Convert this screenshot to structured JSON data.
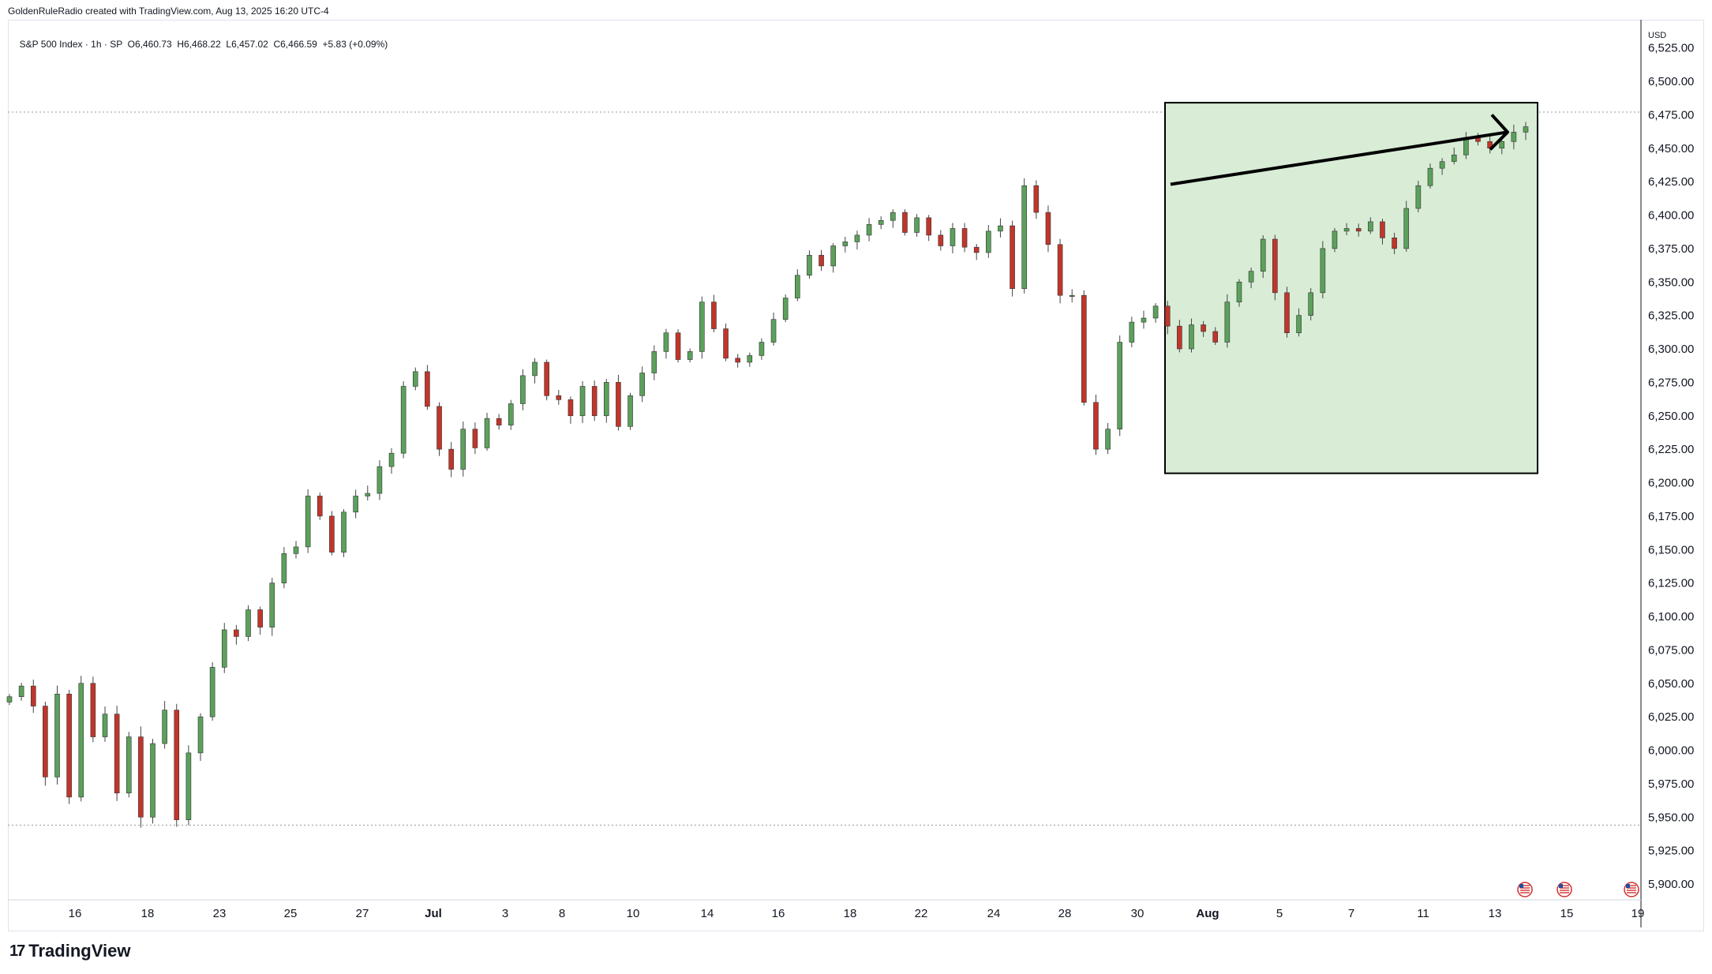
{
  "header": {
    "credit": "GoldenRuleRadio created with TradingView.com, Aug 13, 2025 16:20 UTC-4"
  },
  "legend": {
    "symbol": "S&P 500 Index · 1h · SP",
    "ohlc": "O6,460.73  H6,468.22  L6,457.02  C6,466.59  +5.83 (+0.09%)"
  },
  "price_axis": {
    "currency": "USD",
    "ticks": [
      "6,525.00",
      "6,500.00",
      "6,475.00",
      "6,450.00",
      "6,425.00",
      "6,400.00",
      "6,375.00",
      "6,350.00",
      "6,325.00",
      "6,300.00",
      "6,275.00",
      "6,250.00",
      "6,225.00",
      "6,200.00",
      "6,175.00",
      "6,150.00",
      "6,125.00",
      "6,100.00",
      "6,075.00",
      "6,050.00",
      "6,025.00",
      "6,000.00",
      "5,975.00",
      "5,950.00",
      "5,925.00",
      "5,900.00"
    ]
  },
  "logo": {
    "text": "TradingView",
    "mark": "17"
  },
  "colors": {
    "up": "#26a69a",
    "up_fill": "#5ba15b",
    "down": "#c1352a",
    "highlight_fill": "#d8ecd6",
    "highlight_border": "#000000",
    "grid_dotted": "#9598a1"
  },
  "chart_data": {
    "type": "candlestick",
    "title": "S&P 500 Index · 1h · SP",
    "ylim": [
      5890,
      6535
    ],
    "x_tick_labels": [
      "16",
      "18",
      "23",
      "25",
      "27",
      "Jul",
      "3",
      "8",
      "10",
      "14",
      "16",
      "18",
      "22",
      "24",
      "28",
      "30",
      "Aug",
      "5",
      "7",
      "11",
      "13",
      "15",
      "19"
    ],
    "reference_lines": [
      6477,
      5944
    ],
    "annotation": {
      "box": {
        "x_start_label": "Jul 31",
        "x_end_label": "Aug 13",
        "y_low": 6207,
        "y_high": 6484
      },
      "arrow": {
        "from_price": 6423,
        "to_price": 6462
      }
    },
    "path": [
      [
        6040,
        0
      ],
      [
        6048,
        2
      ],
      [
        6033,
        3
      ],
      [
        5980,
        3
      ],
      [
        6042,
        4
      ],
      [
        5965,
        2
      ],
      [
        6050,
        3
      ],
      [
        6010,
        3
      ],
      [
        6027,
        3
      ],
      [
        5968,
        4
      ],
      [
        6010,
        3
      ],
      [
        5950,
        4
      ],
      [
        6005,
        3
      ],
      [
        6030,
        3
      ],
      [
        5948,
        3
      ],
      [
        5998,
        3
      ],
      [
        6025,
        2
      ],
      [
        6062,
        2
      ],
      [
        6090,
        3
      ],
      [
        6085,
        3
      ],
      [
        6105,
        2
      ],
      [
        6092,
        2
      ],
      [
        6125,
        3
      ],
      [
        6147,
        3
      ],
      [
        6152,
        2
      ],
      [
        6190,
        2
      ],
      [
        6175,
        2
      ],
      [
        6148,
        2
      ],
      [
        6178,
        2
      ],
      [
        6190,
        2
      ],
      [
        6192,
        2
      ],
      [
        6212,
        3
      ],
      [
        6222,
        2
      ],
      [
        6272,
        2
      ],
      [
        6283,
        2
      ],
      [
        6257,
        2
      ],
      [
        6225,
        2
      ],
      [
        6210,
        2
      ],
      [
        6240,
        2
      ],
      [
        6226,
        2
      ],
      [
        6248,
        2
      ],
      [
        6243,
        2
      ],
      [
        6259,
        2
      ],
      [
        6280,
        2
      ],
      [
        6290,
        2
      ],
      [
        6265,
        2
      ],
      [
        6262,
        2
      ],
      [
        6250,
        2
      ],
      [
        6272,
        2
      ],
      [
        6250,
        2
      ],
      [
        6275,
        2
      ],
      [
        6242,
        2
      ],
      [
        6265,
        2
      ],
      [
        6282,
        2
      ],
      [
        6298,
        2
      ],
      [
        6312,
        2
      ],
      [
        6292,
        2
      ],
      [
        6298,
        2
      ],
      [
        6335,
        2
      ],
      [
        6315,
        2
      ],
      [
        6293,
        2
      ],
      [
        6290,
        2
      ],
      [
        6295,
        2
      ],
      [
        6305,
        2
      ],
      [
        6322,
        2
      ],
      [
        6338,
        2
      ],
      [
        6355,
        2
      ],
      [
        6370,
        2
      ],
      [
        6362,
        2
      ],
      [
        6377,
        2
      ],
      [
        6380,
        2
      ],
      [
        6385,
        2
      ],
      [
        6393,
        2
      ],
      [
        6396,
        2
      ],
      [
        6402,
        2
      ],
      [
        6387,
        2
      ],
      [
        6398,
        2
      ],
      [
        6385,
        2
      ],
      [
        6377,
        2
      ],
      [
        6390,
        2
      ],
      [
        6376,
        2
      ],
      [
        6372,
        2
      ],
      [
        6388,
        2
      ],
      [
        6392,
        2
      ],
      [
        6345,
        2
      ],
      [
        6422,
        2
      ],
      [
        6402,
        2
      ],
      [
        6378,
        2
      ],
      [
        6340,
        2
      ],
      [
        6340,
        2
      ],
      [
        6260,
        2
      ],
      [
        6225,
        2
      ],
      [
        6240,
        2
      ],
      [
        6305,
        2
      ],
      [
        6320,
        2
      ],
      [
        6323,
        2
      ],
      [
        6332,
        2
      ],
      [
        6317,
        2
      ],
      [
        6300,
        2
      ],
      [
        6318,
        2
      ],
      [
        6313,
        2
      ],
      [
        6305,
        2
      ],
      [
        6335,
        2
      ],
      [
        6350,
        2
      ],
      [
        6358,
        2
      ],
      [
        6382,
        2
      ],
      [
        6342,
        2
      ],
      [
        6312,
        2
      ],
      [
        6325,
        2
      ],
      [
        6342,
        2
      ],
      [
        6375,
        2
      ],
      [
        6388,
        2
      ],
      [
        6390,
        2
      ],
      [
        6388,
        2
      ],
      [
        6395,
        2
      ],
      [
        6383,
        2
      ],
      [
        6375,
        2
      ],
      [
        6405,
        2
      ],
      [
        6422,
        2
      ],
      [
        6435,
        2
      ],
      [
        6440,
        2
      ],
      [
        6445,
        2
      ],
      [
        6458,
        2
      ],
      [
        6455,
        2
      ],
      [
        6450,
        2
      ],
      [
        6455,
        2
      ],
      [
        6462,
        2
      ],
      [
        6466,
        2
      ]
    ]
  }
}
